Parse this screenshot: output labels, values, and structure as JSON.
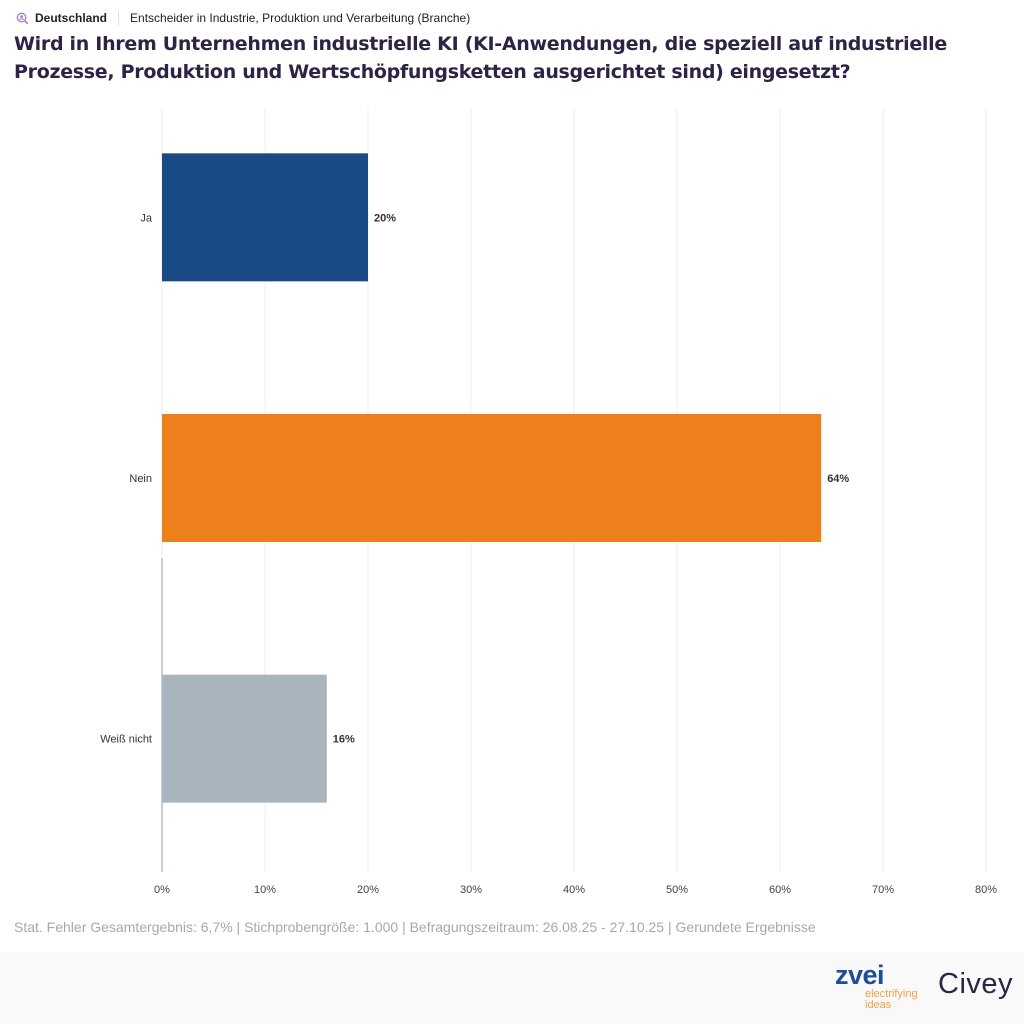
{
  "header": {
    "country": "Deutschland",
    "segment": "Entscheider in Industrie, Produktion und Verarbeitung (Branche)",
    "icon": "search-person-icon",
    "title": "Wird in Ihrem Unternehmen industrielle KI (KI-Anwendungen, die speziell auf industrielle Prozesse, Produktion und Wertschöpfungsketten ausgerichtet sind) eingesetzt?"
  },
  "chart_data": {
    "type": "bar",
    "orientation": "horizontal",
    "title": "Wird in Ihrem Unternehmen industrielle KI (KI-Anwendungen, die speziell auf industrielle Prozesse, Produktion und Wertschöpfungsketten ausgerichtet sind) eingesetzt?",
    "categories": [
      "Ja",
      "Nein",
      "Weiß nicht"
    ],
    "values": [
      20,
      64,
      16
    ],
    "value_labels": [
      "20%",
      "64%",
      "16%"
    ],
    "colors": [
      "#1a4a85",
      "#ee801b",
      "#a9b5bd"
    ],
    "xlabel": "",
    "ylabel": "",
    "xlim": [
      0,
      80
    ],
    "xticks": [
      0,
      10,
      20,
      30,
      40,
      50,
      60,
      70,
      80
    ],
    "xtick_labels": [
      "0%",
      "10%",
      "20%",
      "30%",
      "40%",
      "50%",
      "60%",
      "70%",
      "80%"
    ],
    "grid": true,
    "legend": "none"
  },
  "footnote": "Stat. Fehler Gesamtergebnis: 6,7% | Stichprobengröße: 1.000 | Befragungszeitraum: 26.08.25 - 27.10.25 | Gerundete Ergebnisse",
  "branding": {
    "zvei": "zvei",
    "zvei_tagline_1": "electrifying",
    "zvei_tagline_2": "ideas",
    "civey": "Civey"
  }
}
